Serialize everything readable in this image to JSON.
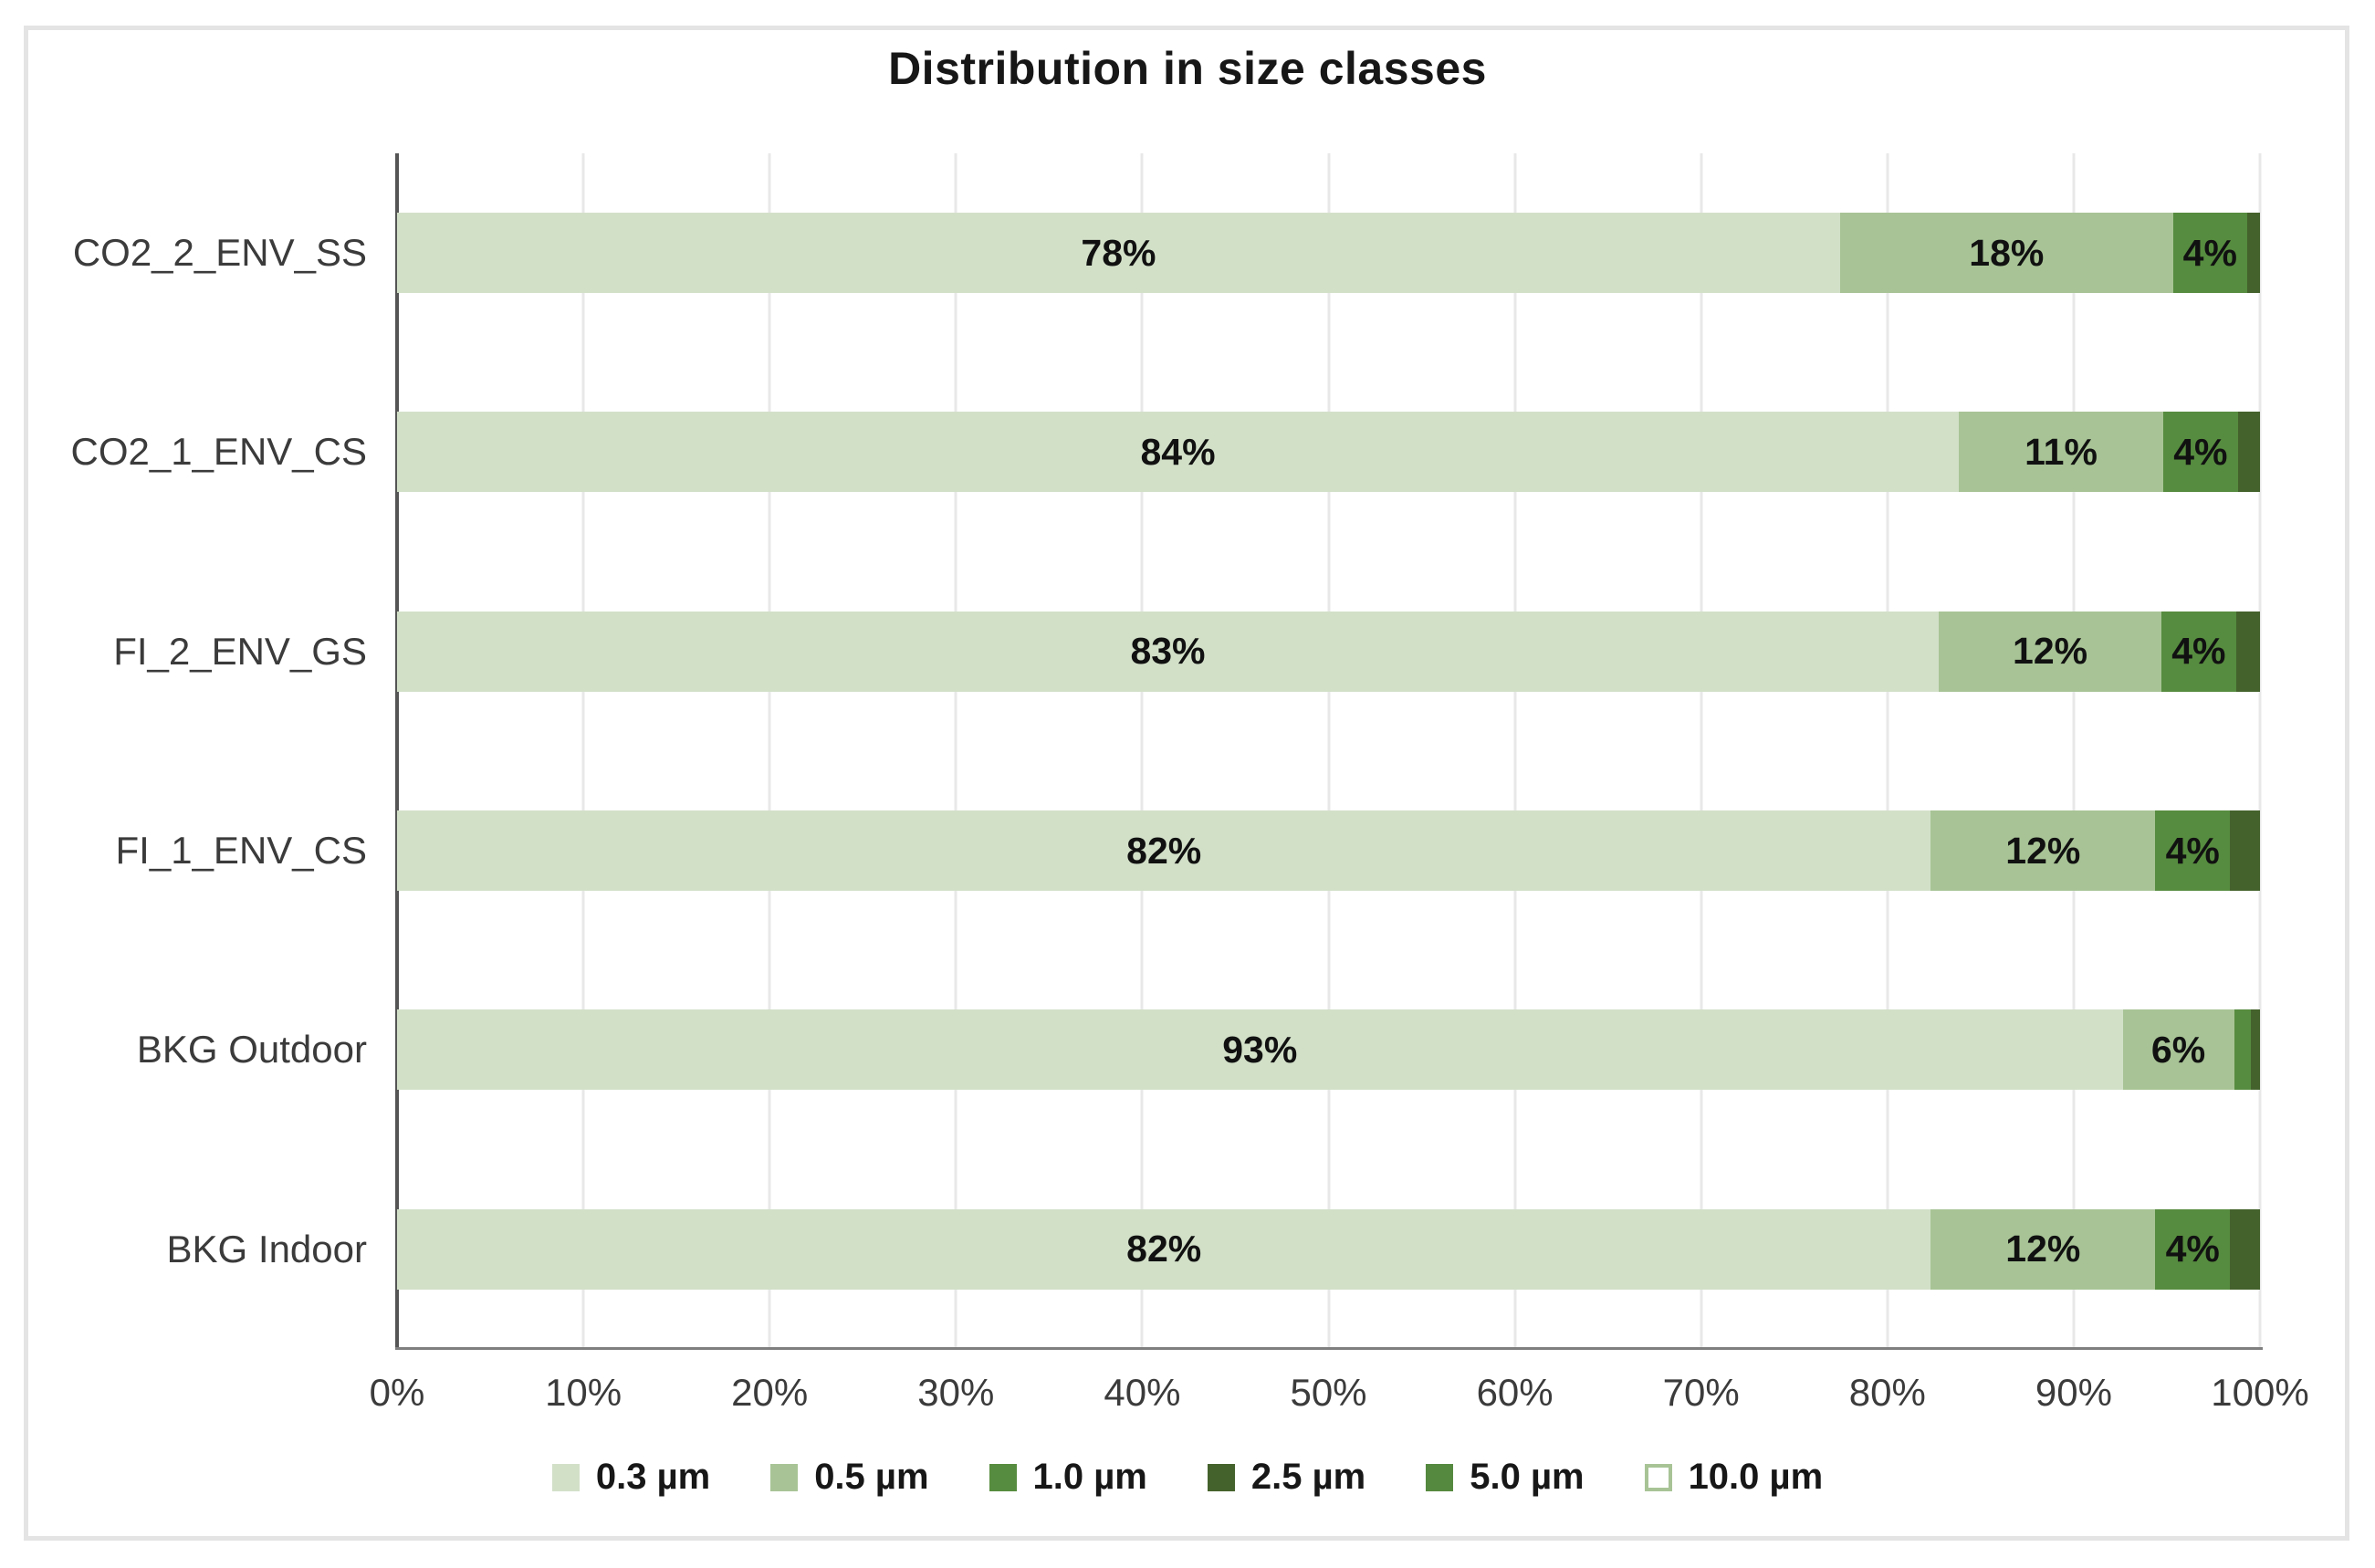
{
  "title": "Distribution in size classes",
  "chart_data": {
    "type": "bar",
    "orientation": "horizontal",
    "stacked": true,
    "title": "Distribution in size classes",
    "categories": [
      "CO2_2_ENV_SS",
      "CO2_1_ENV_CS",
      "FI_2_ENV_GS",
      "FI_1_ENV_CS",
      "BKG Outdoor",
      "BKG Indoor"
    ],
    "series": [
      {
        "name": "0.3 µm",
        "color": "#d2e0c8",
        "values": [
          78,
          84,
          83,
          82,
          93,
          82
        ],
        "labels": [
          "78%",
          "84%",
          "83%",
          "82%",
          "93%",
          "82%"
        ]
      },
      {
        "name": "0.5 µm",
        "color": "#a8c496",
        "values": [
          18,
          11,
          12,
          12,
          6,
          12
        ],
        "labels": [
          "18%",
          "11%",
          "12%",
          "12%",
          "6%",
          "12%"
        ]
      },
      {
        "name": "1.0 µm",
        "color": "#568c3f",
        "values": [
          4,
          4,
          4,
          4,
          0.9,
          4
        ],
        "labels": [
          "4%",
          "4%",
          "4%",
          "4%",
          "",
          "4%"
        ]
      },
      {
        "name": "2.5 µm",
        "color": "#44622c",
        "values": [
          0.7,
          1.2,
          1.3,
          1.6,
          0.5,
          1.6
        ],
        "labels": [
          "",
          "",
          "",
          "",
          "",
          ""
        ]
      },
      {
        "name": "5.0 µm",
        "color": "#55893f",
        "values": [
          0,
          0,
          0,
          0,
          0,
          0
        ],
        "labels": [
          "",
          "",
          "",
          "",
          "",
          ""
        ]
      },
      {
        "name": "10.0 µm",
        "color": "#ffffff",
        "swatch_border": "#a8c496",
        "values": [
          0,
          0,
          0,
          0,
          0,
          0
        ],
        "labels": [
          "",
          "",
          "",
          "",
          "",
          ""
        ]
      }
    ],
    "x_ticks": [
      "0%",
      "10%",
      "20%",
      "30%",
      "40%",
      "50%",
      "60%",
      "70%",
      "80%",
      "90%",
      "100%"
    ],
    "xlim": [
      0,
      100
    ],
    "grid": "vertical",
    "legend_position": "bottom",
    "palette": {
      "gridline": "#e8e8e8",
      "axis_line": "#7f7f7f",
      "frame_border": "#e4e4e4",
      "background": "#ffffff",
      "text": "#3b3b3b"
    }
  }
}
